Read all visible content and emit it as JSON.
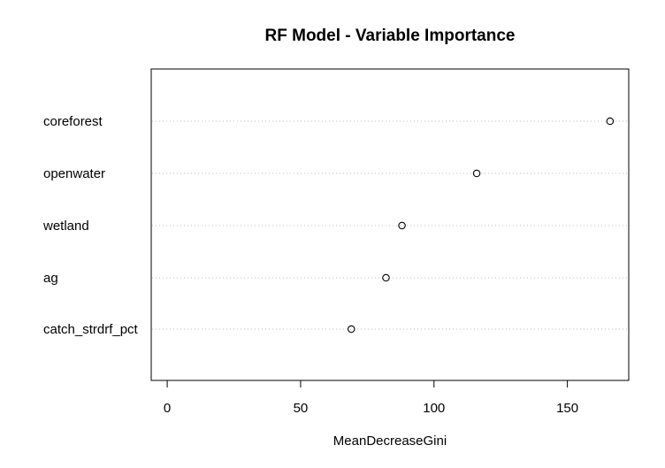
{
  "chart_data": {
    "type": "scatter",
    "title": "RF Model - Variable Importance",
    "xlabel": "MeanDecreaseGini",
    "ylabel": "",
    "xlim": [
      -6,
      173
    ],
    "xticks": [
      0,
      50,
      100,
      150
    ],
    "xtick_labels": [
      "0",
      "50",
      "100",
      "150"
    ],
    "grid": "dotted horizontal guide lines",
    "categories": [
      "coreforest",
      "openwater",
      "wetland",
      "ag",
      "catch_strdrf_pct"
    ],
    "values": [
      166,
      116,
      88,
      82,
      69
    ],
    "colors": {
      "points": "#000000",
      "guides": "#bebebe",
      "frame": "#000000"
    }
  }
}
